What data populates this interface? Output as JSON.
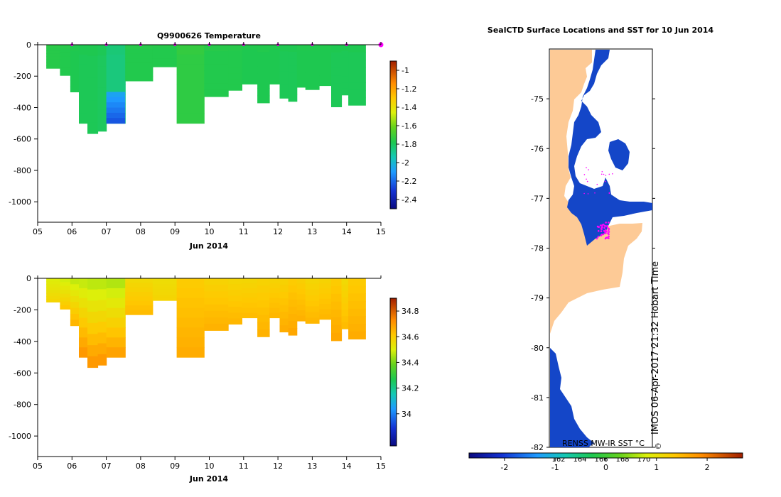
{
  "colors": {
    "magenta": "#ff00ff",
    "land": "#fdca96",
    "sea_ice": "#ffffff",
    "ocean_blue": "#1446c8",
    "axis": "#000000"
  },
  "chart_data": [
    {
      "type": "heatmap",
      "title": "Q9900626  Temperature",
      "xlabel": "Jun 2014",
      "ylabel": "",
      "x_ticks": [
        "05",
        "06",
        "07",
        "08",
        "09",
        "10",
        "11",
        "12",
        "13",
        "14",
        "15"
      ],
      "xlim": [
        5,
        15
      ],
      "y_ticks": [
        0,
        -200,
        -400,
        -600,
        -800,
        -1000
      ],
      "ylim": [
        -1130,
        0
      ],
      "profile_markers_day": [
        6.0,
        7.0,
        8.0,
        9.0,
        10.0,
        11.0,
        12.0,
        13.0,
        14.0,
        15.0
      ],
      "colorbar": {
        "min": -2.5,
        "max": -0.9,
        "ticks": [
          "-1",
          "-1.2",
          "-1.4",
          "-1.6",
          "-1.8",
          "-2",
          "-2.2",
          "-2.4"
        ],
        "tick_values": [
          -1.0,
          -1.2,
          -1.4,
          -1.6,
          -1.8,
          -2.0,
          -2.2,
          -2.4
        ]
      },
      "profiles": [
        {
          "x0": 5.25,
          "x1": 5.65,
          "depth": -150,
          "value": -1.76
        },
        {
          "x0": 5.65,
          "x1": 5.95,
          "depth": -195,
          "value": -1.77
        },
        {
          "x0": 5.95,
          "x1": 6.2,
          "depth": -300,
          "value": -1.78
        },
        {
          "x0": 6.2,
          "x1": 6.45,
          "depth": -500,
          "value": -1.79
        },
        {
          "x0": 6.45,
          "x1": 6.75,
          "depth": -565,
          "value": -1.79
        },
        {
          "x0": 6.75,
          "x1": 7.0,
          "depth": -550,
          "value": -1.8
        },
        {
          "x0": 7.0,
          "x1": 7.55,
          "depth": -500,
          "value": -1.85
        },
        {
          "x0": 7.55,
          "x1": 8.35,
          "depth": -230,
          "value": -1.77
        },
        {
          "x0": 8.35,
          "x1": 9.05,
          "depth": -140,
          "value": -1.77
        },
        {
          "x0": 9.05,
          "x1": 9.85,
          "depth": -500,
          "value": -1.74
        },
        {
          "x0": 9.85,
          "x1": 10.55,
          "depth": -330,
          "value": -1.77
        },
        {
          "x0": 10.55,
          "x1": 10.95,
          "depth": -290,
          "value": -1.77
        },
        {
          "x0": 10.95,
          "x1": 11.4,
          "depth": -250,
          "value": -1.78
        },
        {
          "x0": 11.4,
          "x1": 11.75,
          "depth": -370,
          "value": -1.78
        },
        {
          "x0": 11.75,
          "x1": 12.05,
          "depth": -250,
          "value": -1.78
        },
        {
          "x0": 12.05,
          "x1": 12.3,
          "depth": -340,
          "value": -1.79
        },
        {
          "x0": 12.3,
          "x1": 12.55,
          "depth": -360,
          "value": -1.79
        },
        {
          "x0": 12.55,
          "x1": 12.8,
          "depth": -270,
          "value": -1.78
        },
        {
          "x0": 12.8,
          "x1": 13.2,
          "depth": -285,
          "value": -1.78
        },
        {
          "x0": 13.2,
          "x1": 13.55,
          "depth": -260,
          "value": -1.78
        },
        {
          "x0": 13.55,
          "x1": 13.85,
          "depth": -395,
          "value": -1.79
        },
        {
          "x0": 13.85,
          "x1": 14.05,
          "depth": -320,
          "value": -1.79
        },
        {
          "x0": 14.05,
          "x1": 14.55,
          "depth": -385,
          "value": -1.79
        }
      ],
      "anomaly": {
        "x0": 7.0,
        "x1": 7.55,
        "top": -300,
        "bottom": -500,
        "value": -2.15
      }
    },
    {
      "type": "heatmap",
      "title": "",
      "xlabel": "Jun 2014",
      "ylabel": "",
      "x_ticks": [
        "05",
        "06",
        "07",
        "08",
        "09",
        "10",
        "11",
        "12",
        "13",
        "14",
        "15"
      ],
      "xlim": [
        5,
        15
      ],
      "y_ticks": [
        0,
        -200,
        -400,
        -600,
        -800,
        -1000
      ],
      "ylim": [
        -1130,
        0
      ],
      "colorbar": {
        "min": 33.75,
        "max": 34.9,
        "ticks": [
          "34.8",
          "34.6",
          "34.4",
          "34.2",
          "34"
        ],
        "tick_values": [
          34.8,
          34.6,
          34.4,
          34.2,
          34.0
        ]
      },
      "profiles": [
        {
          "x0": 5.25,
          "x1": 5.65,
          "depth": -150,
          "surface": 34.5,
          "bottom": 34.58
        },
        {
          "x0": 5.65,
          "x1": 5.95,
          "depth": -195,
          "surface": 34.48,
          "bottom": 34.62
        },
        {
          "x0": 5.95,
          "x1": 6.2,
          "depth": -300,
          "surface": 34.46,
          "bottom": 34.66
        },
        {
          "x0": 6.2,
          "x1": 6.45,
          "depth": -500,
          "surface": 34.46,
          "bottom": 34.72
        },
        {
          "x0": 6.45,
          "x1": 6.75,
          "depth": -565,
          "surface": 34.45,
          "bottom": 34.72
        },
        {
          "x0": 6.75,
          "x1": 7.0,
          "depth": -550,
          "surface": 34.45,
          "bottom": 34.72
        },
        {
          "x0": 7.0,
          "x1": 7.55,
          "depth": -500,
          "surface": 34.44,
          "bottom": 34.7
        },
        {
          "x0": 7.55,
          "x1": 8.35,
          "depth": -230,
          "surface": 34.56,
          "bottom": 34.64
        },
        {
          "x0": 8.35,
          "x1": 9.05,
          "depth": -140,
          "surface": 34.55,
          "bottom": 34.58
        },
        {
          "x0": 9.05,
          "x1": 9.85,
          "depth": -500,
          "surface": 34.6,
          "bottom": 34.67
        },
        {
          "x0": 9.85,
          "x1": 10.55,
          "depth": -330,
          "surface": 34.58,
          "bottom": 34.66
        },
        {
          "x0": 10.55,
          "x1": 10.95,
          "depth": -290,
          "surface": 34.57,
          "bottom": 34.65
        },
        {
          "x0": 10.95,
          "x1": 11.4,
          "depth": -250,
          "surface": 34.57,
          "bottom": 34.64
        },
        {
          "x0": 11.4,
          "x1": 11.75,
          "depth": -370,
          "surface": 34.58,
          "bottom": 34.66
        },
        {
          "x0": 11.75,
          "x1": 12.05,
          "depth": -250,
          "surface": 34.58,
          "bottom": 34.65
        },
        {
          "x0": 12.05,
          "x1": 12.3,
          "depth": -340,
          "surface": 34.58,
          "bottom": 34.67
        },
        {
          "x0": 12.3,
          "x1": 12.55,
          "depth": -360,
          "surface": 34.6,
          "bottom": 34.68
        },
        {
          "x0": 12.55,
          "x1": 12.8,
          "depth": -270,
          "surface": 34.59,
          "bottom": 34.66
        },
        {
          "x0": 12.8,
          "x1": 13.2,
          "depth": -285,
          "surface": 34.57,
          "bottom": 34.65
        },
        {
          "x0": 13.2,
          "x1": 13.55,
          "depth": -260,
          "surface": 34.58,
          "bottom": 34.65
        },
        {
          "x0": 13.55,
          "x1": 13.85,
          "depth": -395,
          "surface": 34.6,
          "bottom": 34.68
        },
        {
          "x0": 13.85,
          "x1": 14.05,
          "depth": -320,
          "surface": 34.56,
          "bottom": 34.64
        },
        {
          "x0": 14.05,
          "x1": 14.55,
          "depth": -385,
          "surface": 34.6,
          "bottom": 34.67
        }
      ]
    },
    {
      "type": "map",
      "title": "SealCTD Surface Locations and SST for 10 Jun 2014",
      "y_ticks": [
        "-75",
        "-76",
        "-77",
        "-78",
        "-79",
        "-80",
        "-81",
        "-82"
      ],
      "y_tick_values": [
        -75,
        -76,
        -77,
        -78,
        -79,
        -80,
        -81,
        -82
      ],
      "ylim": [
        -82.0,
        -74.0
      ],
      "lon_labels": [
        "162",
        "164",
        "166",
        "168",
        "170"
      ],
      "sst_label": "RENSS MW-IR SST °C",
      "sst_colorbar": {
        "min": -2.7,
        "max": 2.7,
        "ticks": [
          "-2",
          "-1",
          "0",
          "1",
          "2"
        ],
        "tick_values": [
          -2,
          -1,
          0,
          1,
          2
        ]
      },
      "watermark": "IMOS 06-Apr-2017 21:32 Hobart Time",
      "copyright": "©"
    }
  ]
}
